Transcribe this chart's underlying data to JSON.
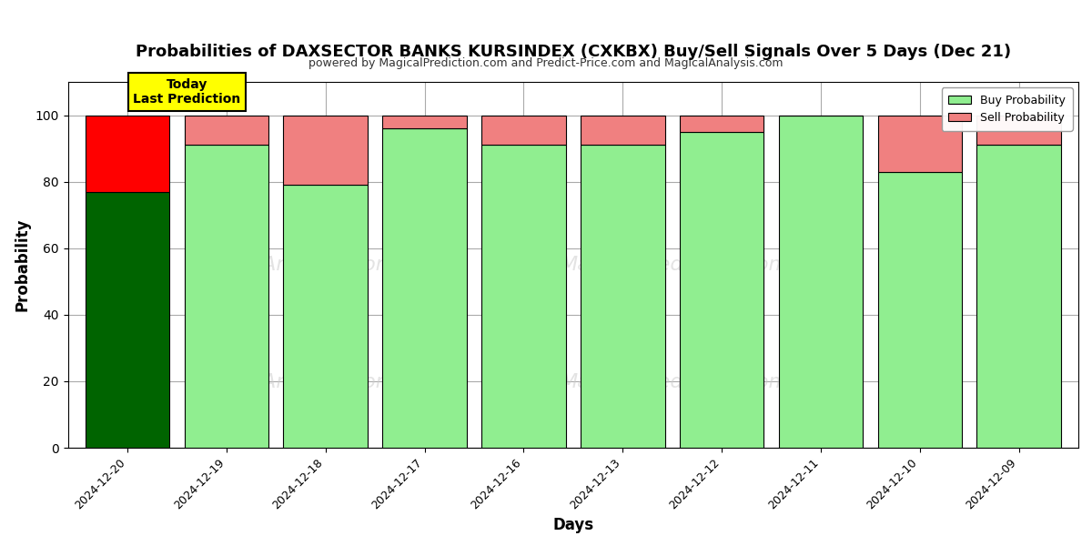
{
  "title": "Probabilities of DAXSECTOR BANKS KURSINDEX (CXKBX) Buy/Sell Signals Over 5 Days (Dec 21)",
  "subtitle": "powered by MagicalPrediction.com and Predict-Price.com and MagicalAnalysis.com",
  "xlabel": "Days",
  "ylabel": "Probability",
  "dates": [
    "2024-12-20",
    "2024-12-19",
    "2024-12-18",
    "2024-12-17",
    "2024-12-16",
    "2024-12-13",
    "2024-12-12",
    "2024-12-11",
    "2024-12-10",
    "2024-12-09"
  ],
  "buy_values": [
    77,
    91,
    79,
    96,
    91,
    91,
    95,
    100,
    83,
    91
  ],
  "sell_values": [
    23,
    9,
    21,
    4,
    9,
    9,
    5,
    0,
    17,
    9
  ],
  "today_label": "Today\nLast Prediction",
  "today_index": 0,
  "today_buy_color": "#006400",
  "today_sell_color": "#ff0000",
  "normal_buy_color": "#90EE90",
  "normal_sell_color": "#F08080",
  "bar_edge_color": "#000000",
  "bar_width": 0.85,
  "ylim": [
    0,
    110
  ],
  "yticks": [
    0,
    20,
    40,
    60,
    80,
    100
  ],
  "grid_color": "#aaaaaa",
  "dashed_line_y": 110,
  "background_color": "#ffffff",
  "legend_buy_label": "Buy Probability",
  "legend_sell_label": "Sell Probability",
  "watermark_color": "#cccccc",
  "title_fontsize": 13,
  "subtitle_fontsize": 9,
  "xlabel_fontsize": 12,
  "ylabel_fontsize": 12,
  "xtick_fontsize": 9,
  "ytick_fontsize": 10
}
